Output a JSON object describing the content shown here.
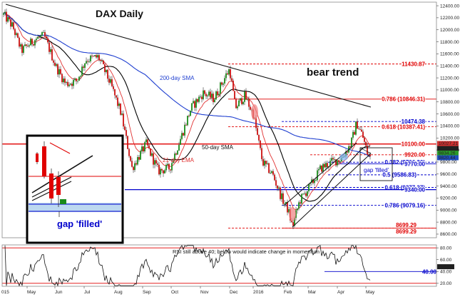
{
  "chart_data": {
    "type": "line",
    "title": "DAX Daily",
    "annotations": {
      "trend": "bear trend",
      "sma200": "200-day SMA",
      "sma50": "50-day SMA",
      "ema21": "21-day EMA",
      "gap_small": "gap 'filled'",
      "gap_inset": "gap 'filled'",
      "rsi_note": "RSI still above 40; below would indicate change in momentum"
    },
    "y_ticks": [
      12400,
      12200,
      12000,
      11800,
      11600,
      11400,
      11200,
      11000,
      10800,
      10600,
      10400,
      10200,
      10000,
      9800,
      9600,
      9400,
      9200,
      9000,
      8800,
      8600
    ],
    "ylim": [
      8540,
      12460
    ],
    "x_ticks": [
      "May",
      "Jun",
      "Jul",
      "Aug",
      "Sep",
      "Oct",
      "Nov",
      "Dec",
      "2016",
      "Feb",
      "Mar",
      "Apr",
      "May"
    ],
    "x_tick_left": "015",
    "levels": [
      {
        "label": "11430.87",
        "value": 11430.87,
        "color": "#e00000"
      },
      {
        "label": "0.786 (10846.31)",
        "value": 10846.31,
        "color": "#e00000"
      },
      {
        "label": "10474.38",
        "value": 10474.38,
        "color": "#0000cc"
      },
      {
        "label": "0.618 (10387.41)",
        "value": 10387.41,
        "color": "#e00000"
      },
      {
        "label": "10100.00",
        "value": 10100.0,
        "color": "#e00000"
      },
      {
        "label": "9920.00",
        "value": 9920.0,
        "color": "#e00000"
      },
      {
        "label": "0.382 (9796.30)",
        "value": 9796.3,
        "color": "#0000cc"
      },
      {
        "label": "9770.00",
        "value": 9770.0,
        "color": "#0000cc"
      },
      {
        "label": "0.5 (9586.83)",
        "value": 9586.83,
        "color": "#0000cc"
      },
      {
        "label": "0.618 (9377.37)",
        "value": 9377.37,
        "color": "#0000cc"
      },
      {
        "label": "9340.00",
        "value": 9340.0,
        "color": "#0000cc"
      },
      {
        "label": "0.786 (9079.16)",
        "value": 9079.16,
        "color": "#0000cc"
      },
      {
        "label": "8699.29",
        "value": 8699.29,
        "color": "#e00000"
      },
      {
        "label": "8699.29",
        "value": 8699.29,
        "color": "#e00000"
      }
    ],
    "price_tags": [
      {
        "label": "10027.21",
        "value": 10027.21,
        "color": "#d03030"
      },
      {
        "label": "9908.99",
        "value": 9908.99,
        "color": "#202020"
      },
      {
        "label": "9834.26",
        "value": 9834.26,
        "color": "#2a9a2a"
      },
      {
        "label": "9820.44",
        "value": 9820.44,
        "color": "#2050c0"
      }
    ],
    "series": [
      {
        "name": "DAX",
        "type": "candlestick"
      },
      {
        "name": "200-day SMA",
        "color": "#1f3fd0"
      },
      {
        "name": "50-day SMA",
        "color": "#000000"
      },
      {
        "name": "21-day EMA",
        "color": "#e03030"
      }
    ],
    "rsi": {
      "y_ticks": [
        80.0,
        60.0,
        40.0,
        20.0
      ],
      "ylim": [
        15,
        85
      ],
      "level": {
        "label": "40.00",
        "value": 40.0
      },
      "current": {
        "label": "47.50",
        "value": 47.5
      }
    }
  }
}
